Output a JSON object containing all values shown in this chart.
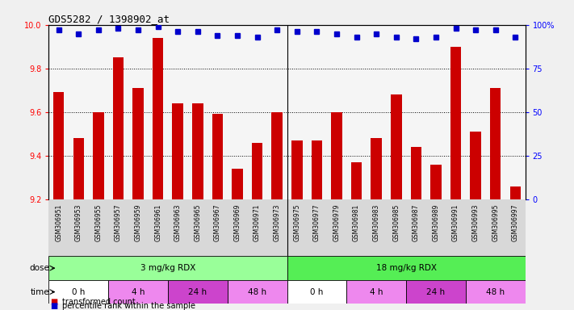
{
  "title": "GDS5282 / 1398902_at",
  "samples": [
    "GSM306951",
    "GSM306953",
    "GSM306955",
    "GSM306957",
    "GSM306959",
    "GSM306961",
    "GSM306963",
    "GSM306965",
    "GSM306967",
    "GSM306969",
    "GSM306971",
    "GSM306973",
    "GSM306975",
    "GSM306977",
    "GSM306979",
    "GSM306981",
    "GSM306983",
    "GSM306985",
    "GSM306987",
    "GSM306989",
    "GSM306991",
    "GSM306993",
    "GSM306995",
    "GSM306997"
  ],
  "bar_values": [
    9.69,
    9.48,
    9.6,
    9.85,
    9.71,
    9.94,
    9.64,
    9.64,
    9.59,
    9.34,
    9.46,
    9.6,
    9.47,
    9.47,
    9.6,
    9.37,
    9.48,
    9.68,
    9.44,
    9.36,
    9.9,
    9.51,
    9.71,
    9.26
  ],
  "percentile_values": [
    97,
    95,
    97,
    98,
    97,
    99,
    96,
    96,
    94,
    94,
    93,
    97,
    96,
    96,
    95,
    93,
    95,
    93,
    92,
    93,
    98,
    97,
    97,
    93
  ],
  "bar_color": "#cc0000",
  "percentile_color": "#0000cc",
  "ylim_left": [
    9.2,
    10.0
  ],
  "ylim_right": [
    0,
    100
  ],
  "yticks_left": [
    9.2,
    9.4,
    9.6,
    9.8,
    10.0
  ],
  "yticks_right": [
    0,
    25,
    50,
    75,
    100
  ],
  "ytick_labels_right": [
    "0",
    "25",
    "50",
    "75",
    "100%"
  ],
  "dose_groups": [
    {
      "label": "3 mg/kg RDX",
      "start": 0,
      "end": 12,
      "color": "#99ff99"
    },
    {
      "label": "18 mg/kg RDX",
      "start": 12,
      "end": 24,
      "color": "#55ee55"
    }
  ],
  "time_groups": [
    {
      "label": "0 h",
      "start": 0,
      "end": 3,
      "color": "#ffffff"
    },
    {
      "label": "4 h",
      "start": 3,
      "end": 6,
      "color": "#ee88ee"
    },
    {
      "label": "24 h",
      "start": 6,
      "end": 9,
      "color": "#cc44cc"
    },
    {
      "label": "48 h",
      "start": 9,
      "end": 12,
      "color": "#ee88ee"
    },
    {
      "label": "0 h",
      "start": 12,
      "end": 15,
      "color": "#ffffff"
    },
    {
      "label": "4 h",
      "start": 15,
      "end": 18,
      "color": "#ee88ee"
    },
    {
      "label": "24 h",
      "start": 18,
      "end": 21,
      "color": "#cc44cc"
    },
    {
      "label": "48 h",
      "start": 21,
      "end": 24,
      "color": "#ee88ee"
    }
  ],
  "dose_label": "dose",
  "time_label": "time",
  "legend_bar": "transformed count",
  "legend_percentile": "percentile rank within the sample",
  "fig_bg_color": "#f0f0f0",
  "plot_bg_color": "#f5f5f5",
  "xtick_bg_color": "#d8d8d8"
}
